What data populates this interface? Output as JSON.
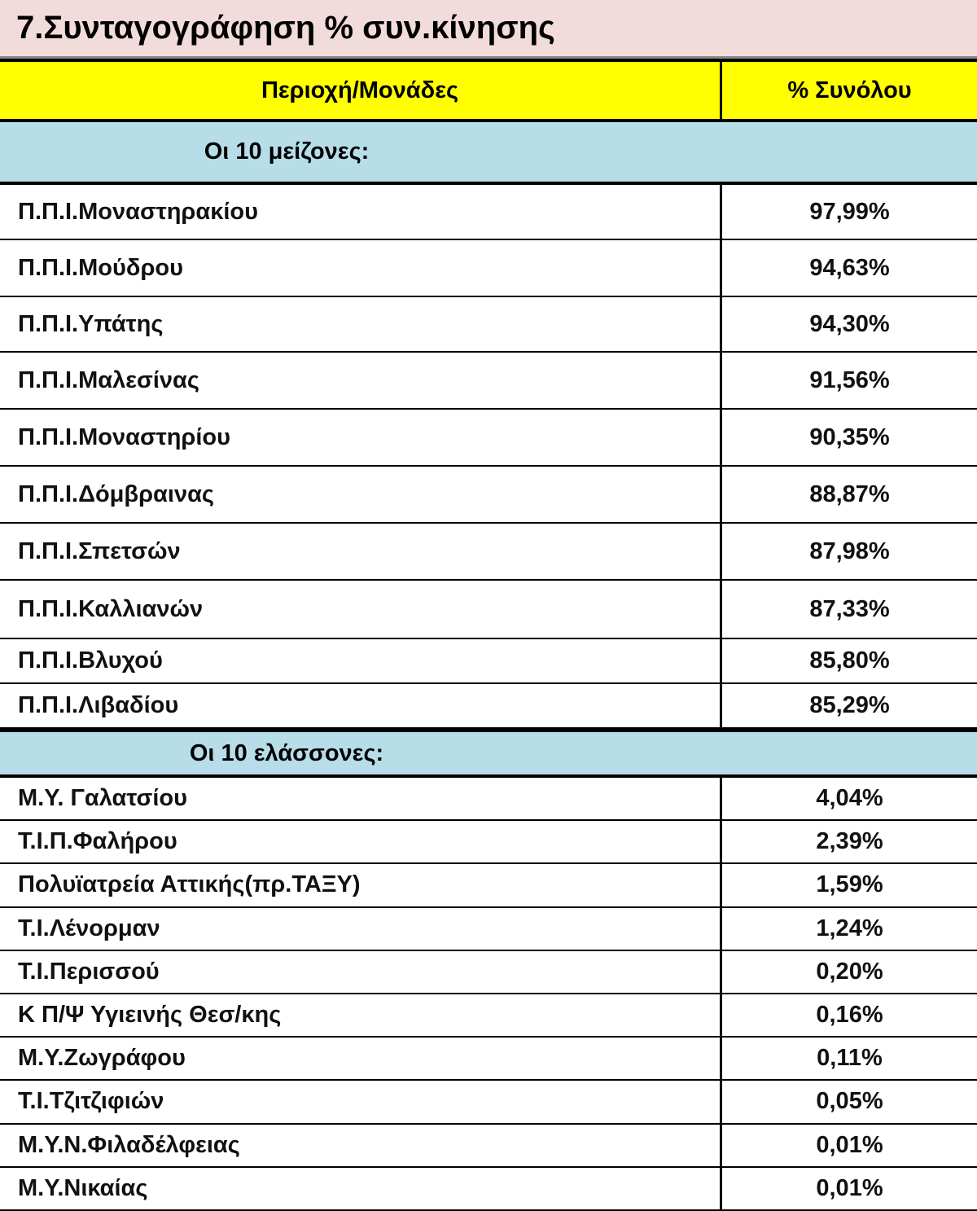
{
  "title": "7.Συνταγογράφηση % συν.κίνησης",
  "table": {
    "header": [
      "Περιοχή/Μονάδες",
      "% Συνόλου"
    ],
    "sections": [
      {
        "label": "Οι 10 μείζονες:",
        "rows": [
          [
            "Π.Π.Ι.Μοναστηρακίου",
            "97,99%"
          ],
          [
            "Π.Π.Ι.Μούδρου",
            "94,63%"
          ],
          [
            "Π.Π.Ι.Υπάτης",
            "94,30%"
          ],
          [
            "Π.Π.Ι.Μαλεσίνας",
            "91,56%"
          ],
          [
            "Π.Π.Ι.Μοναστηρίου",
            "90,35%"
          ],
          [
            "Π.Π.Ι.Δόμβραινας",
            "88,87%"
          ],
          [
            "Π.Π.Ι.Σπετσών",
            "87,98%"
          ],
          [
            "Π.Π.Ι.Καλλιανών",
            "87,33%"
          ],
          [
            "Π.Π.Ι.Βλυχού",
            "85,80%"
          ],
          [
            "Π.Π.Ι.Λιβαδίου",
            "85,29%"
          ]
        ]
      },
      {
        "label": "Οι 10 ελάσσονες:",
        "rows": [
          [
            "Μ.Υ. Γαλατσίου",
            "4,04%"
          ],
          [
            "Τ.Ι.Π.Φαλήρου",
            "2,39%"
          ],
          [
            "Πολυϊατρεία Αττικής(πρ.ΤΑΞΥ)",
            "1,59%"
          ],
          [
            "Τ.Ι.Λένορμαν",
            "1,24%"
          ],
          [
            "Τ.Ι.Περισσού",
            "0,20%"
          ],
          [
            "Κ Π/Ψ Υγιεινής Θεσ/κης",
            "0,16%"
          ],
          [
            "Μ.Υ.Ζωγράφου",
            "0,11%"
          ],
          [
            "Τ.Ι.Τζιτζιφιών",
            "0,05%"
          ],
          [
            "Μ.Υ.Ν.Φιλαδέλφειας",
            "0,01%"
          ],
          [
            "Μ.Υ.Νικαίας",
            "0,01%"
          ]
        ]
      }
    ]
  }
}
